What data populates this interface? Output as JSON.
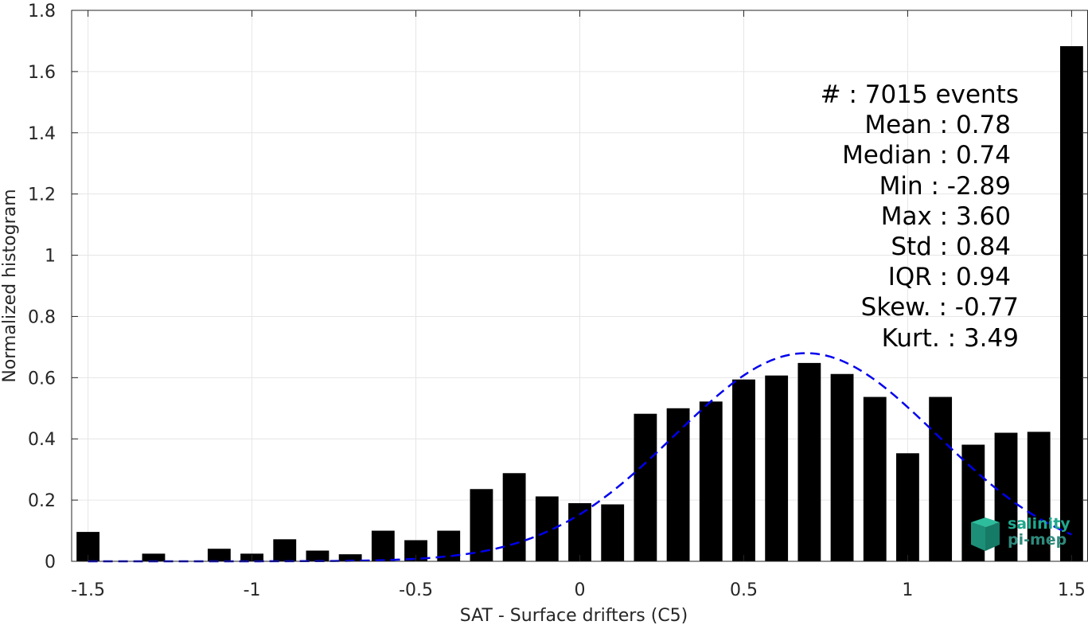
{
  "chart_data": {
    "type": "bar",
    "xlabel": "SAT - Surface drifters (C5)",
    "ylabel": "Normalized histogram",
    "xlim": [
      -1.55,
      1.55
    ],
    "ylim": [
      0,
      1.8
    ],
    "x_ticks": [
      -1.5,
      -1,
      -0.5,
      0,
      0.5,
      1,
      1.5
    ],
    "x_tick_labels": [
      "-1.5",
      "-1",
      "-0.5",
      "0",
      "0.5",
      "1",
      "1.5"
    ],
    "y_ticks": [
      0,
      0.2,
      0.4,
      0.6,
      0.8,
      1,
      1.2,
      1.4,
      1.6,
      1.8
    ],
    "y_tick_labels": [
      "0",
      "0.2",
      "0.4",
      "0.6",
      "0.8",
      "1",
      "1.2",
      "1.4",
      "1.6",
      "1.8"
    ],
    "grid": true,
    "bar_color": "#000000",
    "bar_width": 0.07,
    "bins": [
      -1.5,
      -1.4,
      -1.3,
      -1.2,
      -1.1,
      -1.0,
      -0.9,
      -0.8,
      -0.7,
      -0.6,
      -0.5,
      -0.4,
      -0.3,
      -0.2,
      -0.1,
      0.0,
      0.1,
      0.2,
      0.3,
      0.4,
      0.5,
      0.6,
      0.7,
      0.8,
      0.9,
      1.0,
      1.1,
      1.2,
      1.3,
      1.4,
      1.5
    ],
    "values": [
      0.096,
      0.0,
      0.025,
      0.0,
      0.041,
      0.025,
      0.072,
      0.035,
      0.023,
      0.1,
      0.069,
      0.1,
      0.236,
      0.288,
      0.212,
      0.19,
      0.186,
      0.482,
      0.5,
      0.522,
      0.594,
      0.607,
      0.648,
      0.612,
      0.537,
      0.353,
      0.537,
      0.381,
      0.42,
      0.423,
      1.683
    ],
    "fit_curve": {
      "style": "dashed",
      "color": "#0000ee",
      "mean": 0.69,
      "sigma": 0.4,
      "peak": 0.68,
      "x_range": [
        -1.5,
        1.5
      ]
    }
  },
  "stats_lines": [
    "#  : 7015 events",
    "Mean : 0.78",
    "Median : 0.74",
    "Min : -2.89",
    "Max : 3.60",
    "Std : 0.84",
    "IQR : 0.94",
    "Skew. : -0.77",
    "Kurt. : 3.49"
  ],
  "stats_indent": [
    0,
    10,
    10,
    10,
    10,
    10,
    10,
    0,
    0
  ],
  "logo": {
    "line1": "salinity",
    "line2": "pi-mep",
    "color": "#1fa88e"
  }
}
